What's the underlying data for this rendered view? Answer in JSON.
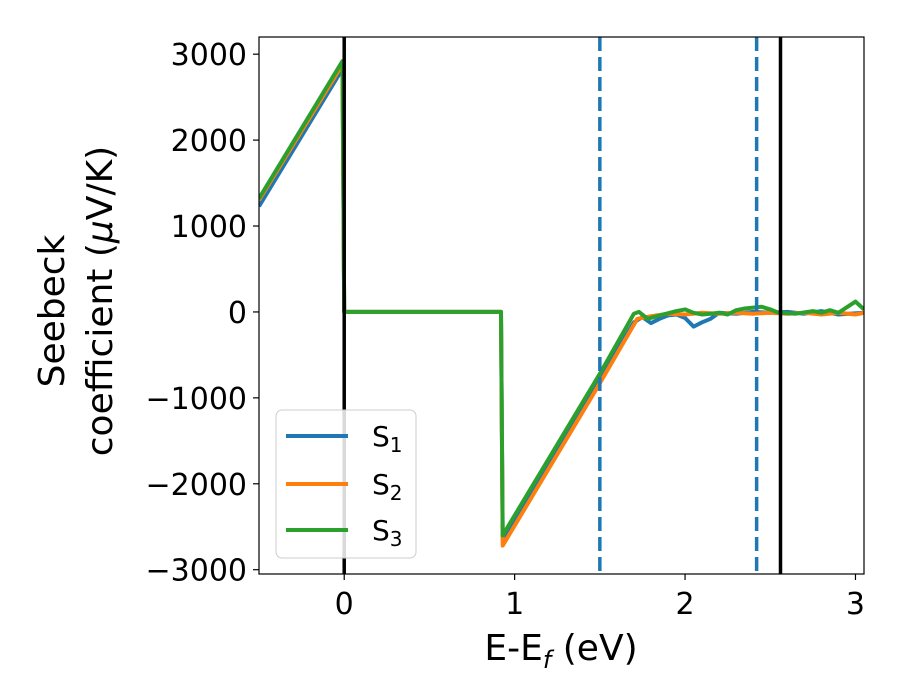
{
  "chart_data": {
    "type": "line",
    "title": "",
    "xlabel_main": "E-E",
    "xlabel_sub": "f",
    "xlabel_tail": " (eV)",
    "ylabel_line1": "Seebeck",
    "ylabel_line2_pre": "coefficient  (",
    "ylabel_line2_mu": "μ",
    "ylabel_line2_post": "V/K)",
    "xlim": [
      -0.5,
      3.05
    ],
    "ylim": [
      -3050,
      3200
    ],
    "x_ticks": [
      0,
      1,
      2,
      3
    ],
    "x_tick_labels": [
      "0",
      "1",
      "2",
      "3"
    ],
    "y_ticks": [
      -3000,
      -2000,
      -1000,
      0,
      1000,
      2000,
      3000
    ],
    "y_tick_labels": [
      "−3000",
      "−2000",
      "−1000",
      "0",
      "1000",
      "2000",
      "3000"
    ],
    "grid": false,
    "legend_position": "lower-left",
    "vlines": [
      {
        "x": 0.0,
        "style": "solid",
        "color": "#000000"
      },
      {
        "x": 1.5,
        "style": "dashed",
        "color": "#1f77b4"
      },
      {
        "x": 2.42,
        "style": "dashed",
        "color": "#1f77b4"
      },
      {
        "x": 2.56,
        "style": "solid",
        "color": "#000000"
      }
    ],
    "series": [
      {
        "name_main": "S",
        "name_sub": "1",
        "color": "#1f77b4",
        "points": [
          [
            -0.5,
            1230
          ],
          [
            -0.01,
            2830
          ],
          [
            0.0,
            0
          ],
          [
            0.92,
            0
          ],
          [
            0.93,
            -2650
          ],
          [
            1.5,
            -780
          ],
          [
            1.7,
            -120
          ],
          [
            1.75,
            -60
          ],
          [
            1.8,
            -130
          ],
          [
            1.85,
            -80
          ],
          [
            1.9,
            -40
          ],
          [
            1.95,
            -30
          ],
          [
            2.0,
            -70
          ],
          [
            2.05,
            -170
          ],
          [
            2.1,
            -120
          ],
          [
            2.15,
            -80
          ],
          [
            2.2,
            -10
          ],
          [
            2.3,
            -20
          ],
          [
            2.4,
            0
          ],
          [
            2.5,
            -10
          ],
          [
            2.6,
            0
          ],
          [
            2.7,
            -20
          ],
          [
            2.8,
            10
          ],
          [
            2.9,
            -30
          ],
          [
            3.05,
            -10
          ]
        ]
      },
      {
        "name_main": "S",
        "name_sub": "2",
        "color": "#ff7f0e",
        "points": [
          [
            -0.5,
            1300
          ],
          [
            -0.01,
            2880
          ],
          [
            0.0,
            0
          ],
          [
            0.92,
            0
          ],
          [
            0.93,
            -2720
          ],
          [
            1.5,
            -830
          ],
          [
            1.72,
            -80
          ],
          [
            1.8,
            -50
          ],
          [
            1.9,
            -20
          ],
          [
            2.0,
            -30
          ],
          [
            2.1,
            -10
          ],
          [
            2.2,
            -20
          ],
          [
            2.3,
            -10
          ],
          [
            2.4,
            -20
          ],
          [
            2.5,
            -10
          ],
          [
            2.6,
            -20
          ],
          [
            2.7,
            -10
          ],
          [
            2.8,
            -30
          ],
          [
            2.9,
            -10
          ],
          [
            3.0,
            -30
          ],
          [
            3.05,
            -10
          ]
        ]
      },
      {
        "name_main": "S",
        "name_sub": "3",
        "color": "#2ca02c",
        "points": [
          [
            -0.5,
            1320
          ],
          [
            -0.01,
            2920
          ],
          [
            0.0,
            0
          ],
          [
            0.92,
            0
          ],
          [
            0.93,
            -2600
          ],
          [
            1.5,
            -720
          ],
          [
            1.7,
            -20
          ],
          [
            1.73,
            0
          ],
          [
            1.78,
            -80
          ],
          [
            1.85,
            -40
          ],
          [
            1.95,
            10
          ],
          [
            2.0,
            30
          ],
          [
            2.05,
            -10
          ],
          [
            2.1,
            -30
          ],
          [
            2.15,
            -20
          ],
          [
            2.2,
            -10
          ],
          [
            2.25,
            -30
          ],
          [
            2.3,
            20
          ],
          [
            2.35,
            40
          ],
          [
            2.4,
            50
          ],
          [
            2.45,
            60
          ],
          [
            2.5,
            30
          ],
          [
            2.55,
            -10
          ],
          [
            2.65,
            -20
          ],
          [
            2.75,
            10
          ],
          [
            2.8,
            -10
          ],
          [
            2.85,
            20
          ],
          [
            2.9,
            -10
          ],
          [
            3.0,
            120
          ],
          [
            3.05,
            30
          ]
        ]
      }
    ]
  }
}
